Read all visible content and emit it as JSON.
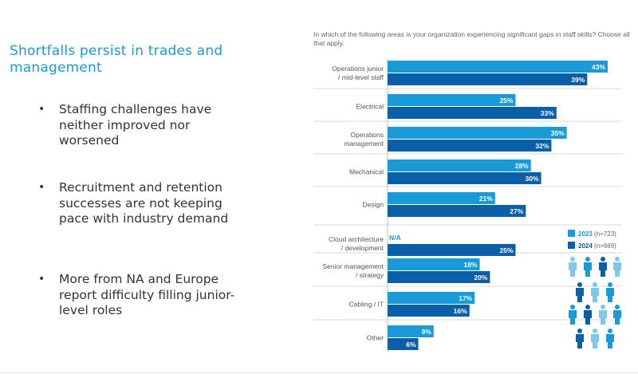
{
  "slide": {
    "title": "Shortfalls persist in trades and management",
    "bullets": [
      "Staffing challenges have neither improved nor worsened",
      "Recruitment and retention successes are not keeping pace with industry demand",
      "More from NA and Europe report difficulty filling junior-level roles"
    ],
    "bullet_symbol": "•"
  },
  "chart_data": {
    "type": "bar",
    "orientation": "horizontal",
    "title": "In which of the following areas is your organization experiencing significant gaps in staff skills? Choose all that apply.",
    "categories": [
      [
        "Operations junior",
        "/ mid-level staff"
      ],
      [
        "Electrical"
      ],
      [
        "Operations",
        "management"
      ],
      [
        "Mechanical"
      ],
      [
        "Design"
      ],
      [
        "Cloud architecture",
        "/ development"
      ],
      [
        "Senior management",
        "/ strategy"
      ],
      [
        "Cabling / IT"
      ],
      [
        "Other"
      ]
    ],
    "unit": "%",
    "xlim": [
      0,
      43
    ],
    "series": [
      {
        "name": "2023",
        "n_label": "(n=723)",
        "color": "#1a9ad7",
        "values": [
          43,
          25,
          35,
          28,
          21,
          null,
          18,
          17,
          9
        ]
      },
      {
        "name": "2024",
        "n_label": "(n=669)",
        "color": "#0b5ea8",
        "values": [
          39,
          33,
          32,
          30,
          27,
          25,
          20,
          16,
          6
        ]
      }
    ],
    "missing_label": "N/A",
    "legend_position": "right",
    "decoration": "people-icons"
  }
}
